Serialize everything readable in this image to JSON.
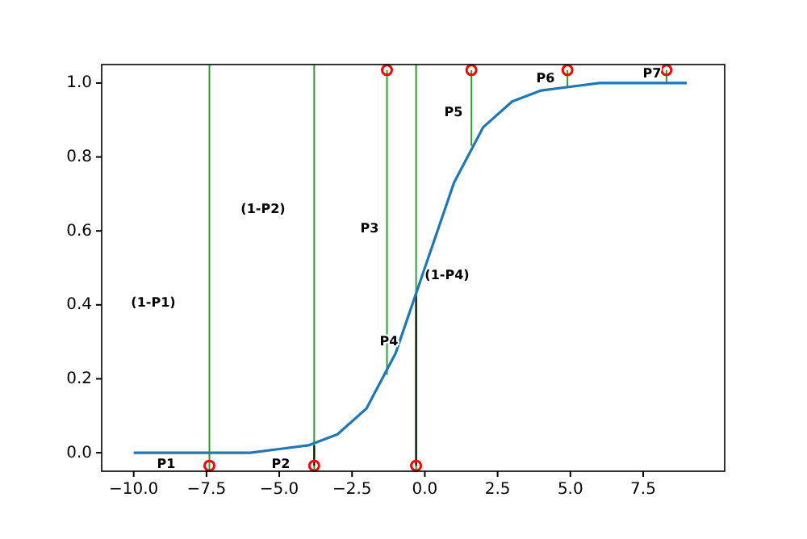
{
  "chart_data": {
    "type": "line",
    "xlim": [
      -11.1,
      10.3
    ],
    "ylim": [
      -0.05,
      1.05
    ],
    "xticks": [
      {
        "value": -10,
        "label": "−10.0"
      },
      {
        "value": -7.5,
        "label": "−7.5"
      },
      {
        "value": -5,
        "label": "−5.0"
      },
      {
        "value": -2.5,
        "label": "−2.5"
      },
      {
        "value": 0,
        "label": "0.0"
      },
      {
        "value": 2.5,
        "label": "2.5"
      },
      {
        "value": 5,
        "label": "5.0"
      },
      {
        "value": 7.5,
        "label": "7.5"
      }
    ],
    "yticks": [
      {
        "value": 0,
        "label": "0.0"
      },
      {
        "value": 0.2,
        "label": "0.2"
      },
      {
        "value": 0.4,
        "label": "0.4"
      },
      {
        "value": 0.6,
        "label": "0.6"
      },
      {
        "value": 0.8,
        "label": "0.8"
      },
      {
        "value": 1,
        "label": "1.0"
      }
    ],
    "grid": false,
    "ref_lines": [
      {
        "axis": "x",
        "value": -7.4,
        "color": "#2ca02c"
      },
      {
        "axis": "x",
        "value": -3.8,
        "color": "#2ca02c"
      },
      {
        "axis": "x",
        "value": -0.3,
        "color": "#2ca02c"
      }
    ],
    "series": [
      {
        "type": "line",
        "color": "#2ca02c",
        "x": [
          -1.3,
          -1.3
        ],
        "values": [
          0.21,
          1.035
        ]
      },
      {
        "type": "line",
        "color": "#2ca02c",
        "x": [
          1.6,
          1.6
        ],
        "values": [
          0.83,
          1.035
        ]
      },
      {
        "type": "line",
        "color": "#2ca02c",
        "x": [
          4.9,
          4.9
        ],
        "values": [
          0.99,
          1.035
        ]
      },
      {
        "type": "line",
        "color": "#2ca02c",
        "x": [
          8.3,
          8.3
        ],
        "values": [
          1.0,
          1.035
        ]
      },
      {
        "type": "line",
        "color": "#000000",
        "x": [
          -3.8,
          -3.8
        ],
        "values": [
          -0.035,
          0.02
        ]
      },
      {
        "type": "line",
        "color": "#000000",
        "x": [
          -0.3,
          -0.3
        ],
        "values": [
          -0.035,
          0.43
        ]
      },
      {
        "color": "#1f77b4",
        "x": [
          -10,
          -9,
          -8,
          -7,
          -6,
          -5,
          -4,
          -3,
          -2,
          -1,
          0,
          1,
          2,
          3,
          4,
          5,
          6,
          7,
          8,
          9
        ],
        "values": [
          0,
          0,
          0,
          0,
          0,
          0.01,
          0.02,
          0.05,
          0.12,
          0.27,
          0.5,
          0.73,
          0.88,
          0.95,
          0.98,
          0.99,
          1.0,
          1.0,
          1.0,
          1.0
        ]
      },
      {
        "type": "scatter",
        "color": "#ff0000",
        "marker": "circle",
        "x": [
          -7.4,
          -3.8,
          -0.3,
          -1.3,
          1.6,
          4.9,
          8.3
        ],
        "values": [
          -0.035,
          -0.035,
          -0.035,
          1.035,
          1.035,
          1.035,
          1.035
        ]
      }
    ],
    "annotations": [
      "(1-P1)",
      "(1-P2)",
      "P3",
      "P4",
      "(1-P4)",
      "P5",
      "P6",
      "P7",
      "P1",
      "P2"
    ]
  }
}
